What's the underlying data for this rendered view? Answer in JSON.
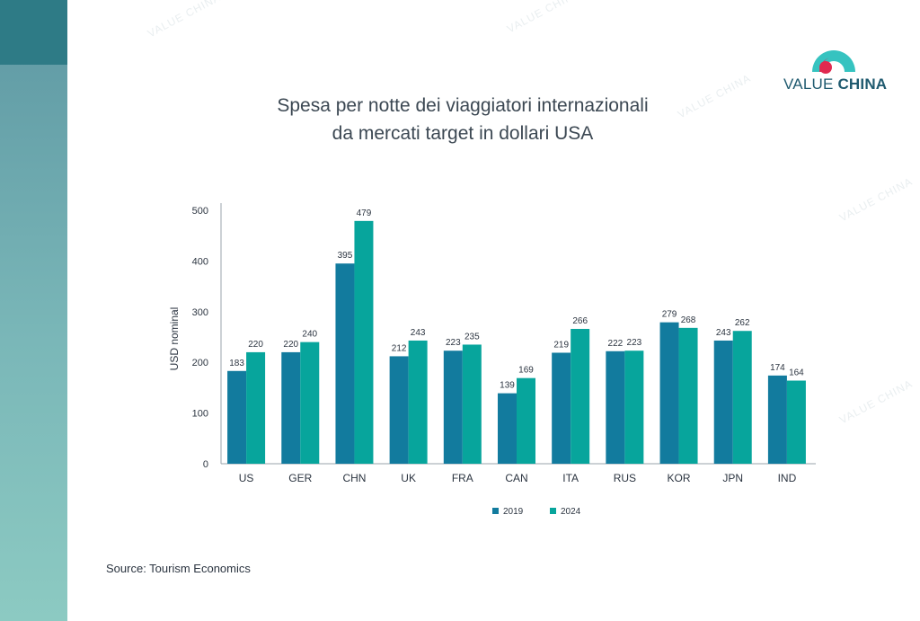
{
  "brand": {
    "name_light": "VALUE",
    "name_bold": "CHINA",
    "watermark": "VALUE CHINA",
    "colors": {
      "teal_dark": "#2e7b86",
      "arc_teal": "#36c3c0",
      "arc_red": "#e0294f",
      "text_blue": "#1f5a6f"
    }
  },
  "source": "Source:  Tourism Economics",
  "chart_data": {
    "type": "bar",
    "title_line1": "Spesa per notte dei viaggiatori internazionali",
    "title_line2": "da mercati target in dollari USA",
    "xlabel": "",
    "ylabel": "USD nominal",
    "ylim": [
      0,
      500
    ],
    "yticks": [
      0,
      100,
      200,
      300,
      400,
      500
    ],
    "grid": false,
    "legend_position": "bottom",
    "categories": [
      "US",
      "GER",
      "CHN",
      "UK",
      "FRA",
      "CAN",
      "ITA",
      "RUS",
      "KOR",
      "JPN",
      "IND"
    ],
    "series": [
      {
        "name": "2019",
        "color": "#127b9e",
        "values": [
          183,
          220,
          395,
          212,
          223,
          139,
          219,
          222,
          279,
          243,
          174
        ]
      },
      {
        "name": "2024",
        "color": "#07a59c",
        "values": [
          220,
          240,
          479,
          243,
          235,
          169,
          266,
          223,
          268,
          262,
          164
        ]
      }
    ]
  }
}
